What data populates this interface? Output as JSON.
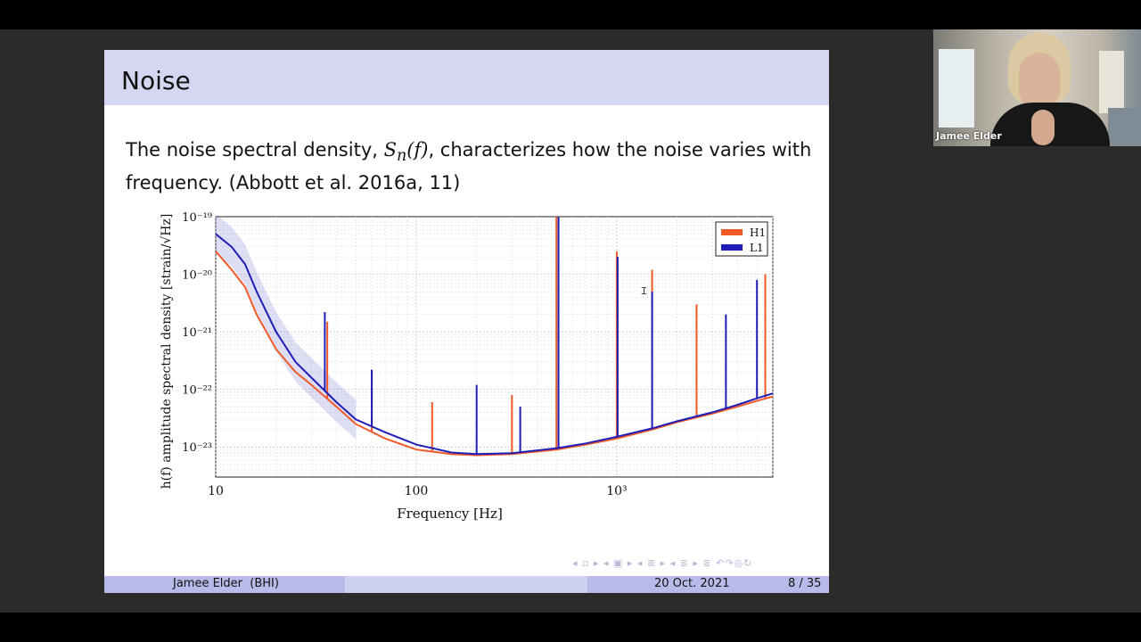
{
  "slide": {
    "title": "Noise",
    "body_prefix": "The noise spectral density, ",
    "body_math": "S",
    "body_math_sub": "n",
    "body_math_arg": "(f)",
    "body_suffix": ", characterizes how the noise varies with frequency. (Abbott et al. 2016a, 11)",
    "nav_symbols": "◂ ▫ ▸   ◂ ▣ ▸   ◂ ≣ ▸   ◂ ≣ ▸   ≣   ↶↷◎↻",
    "footer": {
      "author": "Jamee Elder  (BHI)",
      "date": "20 Oct. 2021",
      "page": "8 / 35"
    }
  },
  "webcam": {
    "participant_name": "Jamee Elder"
  },
  "colors": {
    "H1": "#f05a28",
    "L1": "#1f1fb8",
    "header": "#d5d7f2",
    "footer_dark": "#b8bbe9",
    "footer_light": "#cfd1f0"
  },
  "chart_data": {
    "type": "line",
    "xlabel": "Frequency [Hz]",
    "ylabel": "h(f) amplitude spectral density [strain/√Hz]",
    "x_scale": "log",
    "y_scale": "log",
    "xlim": [
      10,
      6000
    ],
    "ylim": [
      3e-24,
      1e-19
    ],
    "x_tick_labels": [
      "10",
      "100",
      "10³"
    ],
    "x_tick_values": [
      10,
      100,
      1000
    ],
    "y_tick_labels": [
      "10⁻²³",
      "10⁻²²",
      "10⁻²¹",
      "10⁻²⁰",
      "10⁻¹⁹"
    ],
    "y_tick_values": [
      1e-23,
      1e-22,
      1e-21,
      1e-20,
      1e-19
    ],
    "grid": true,
    "legend_position": "top-right",
    "series": [
      {
        "name": "H1",
        "color": "#f05a28",
        "x": [
          10,
          12,
          14,
          16,
          20,
          25,
          30,
          40,
          50,
          70,
          100,
          150,
          200,
          300,
          500,
          700,
          1000,
          1500,
          2000,
          3000,
          4000,
          5000,
          6000
        ],
        "y": [
          2.5e-20,
          1.2e-20,
          6e-21,
          2e-21,
          5e-22,
          2e-22,
          1.2e-22,
          5e-23,
          2.5e-23,
          1.4e-23,
          9e-24,
          7.5e-24,
          7.2e-24,
          7.5e-24,
          9e-24,
          1.1e-23,
          1.4e-23,
          2e-23,
          2.7e-23,
          3.8e-23,
          5e-23,
          6.3e-23,
          7.5e-23
        ],
        "peaks": [
          {
            "x": 36,
            "y": 1.5e-21
          },
          {
            "x": 60,
            "y": 2e-22
          },
          {
            "x": 120,
            "y": 6e-23
          },
          {
            "x": 300,
            "y": 8e-23
          },
          {
            "x": 500,
            "y": 1e-19
          },
          {
            "x": 1000,
            "y": 2.5e-20
          },
          {
            "x": 1500,
            "y": 1.2e-20
          },
          {
            "x": 2500,
            "y": 3e-21
          },
          {
            "x": 5500,
            "y": 1e-20
          }
        ]
      },
      {
        "name": "L1",
        "color": "#1f1fb8",
        "x": [
          10,
          12,
          14,
          16,
          20,
          25,
          30,
          40,
          50,
          70,
          100,
          150,
          200,
          300,
          500,
          700,
          1000,
          1500,
          2000,
          3000,
          4000,
          5000,
          6000
        ],
        "y": [
          5e-20,
          3e-20,
          1.5e-20,
          5e-21,
          1e-21,
          3e-22,
          1.6e-22,
          6e-23,
          3e-23,
          1.8e-23,
          1.1e-23,
          8e-24,
          7.5e-24,
          7.8e-24,
          9.5e-24,
          1.15e-23,
          1.5e-23,
          2.1e-23,
          2.8e-23,
          4e-23,
          5.4e-23,
          7e-23,
          8.5e-23
        ],
        "peaks": [
          {
            "x": 35,
            "y": 2.2e-21
          },
          {
            "x": 60,
            "y": 2.2e-22
          },
          {
            "x": 200,
            "y": 1.2e-22
          },
          {
            "x": 330,
            "y": 5e-23
          },
          {
            "x": 512,
            "y": 1e-19
          },
          {
            "x": 1010,
            "y": 2e-20
          },
          {
            "x": 1500,
            "y": 5e-21
          },
          {
            "x": 3500,
            "y": 2e-21
          },
          {
            "x": 5000,
            "y": 8e-21
          }
        ]
      }
    ]
  }
}
